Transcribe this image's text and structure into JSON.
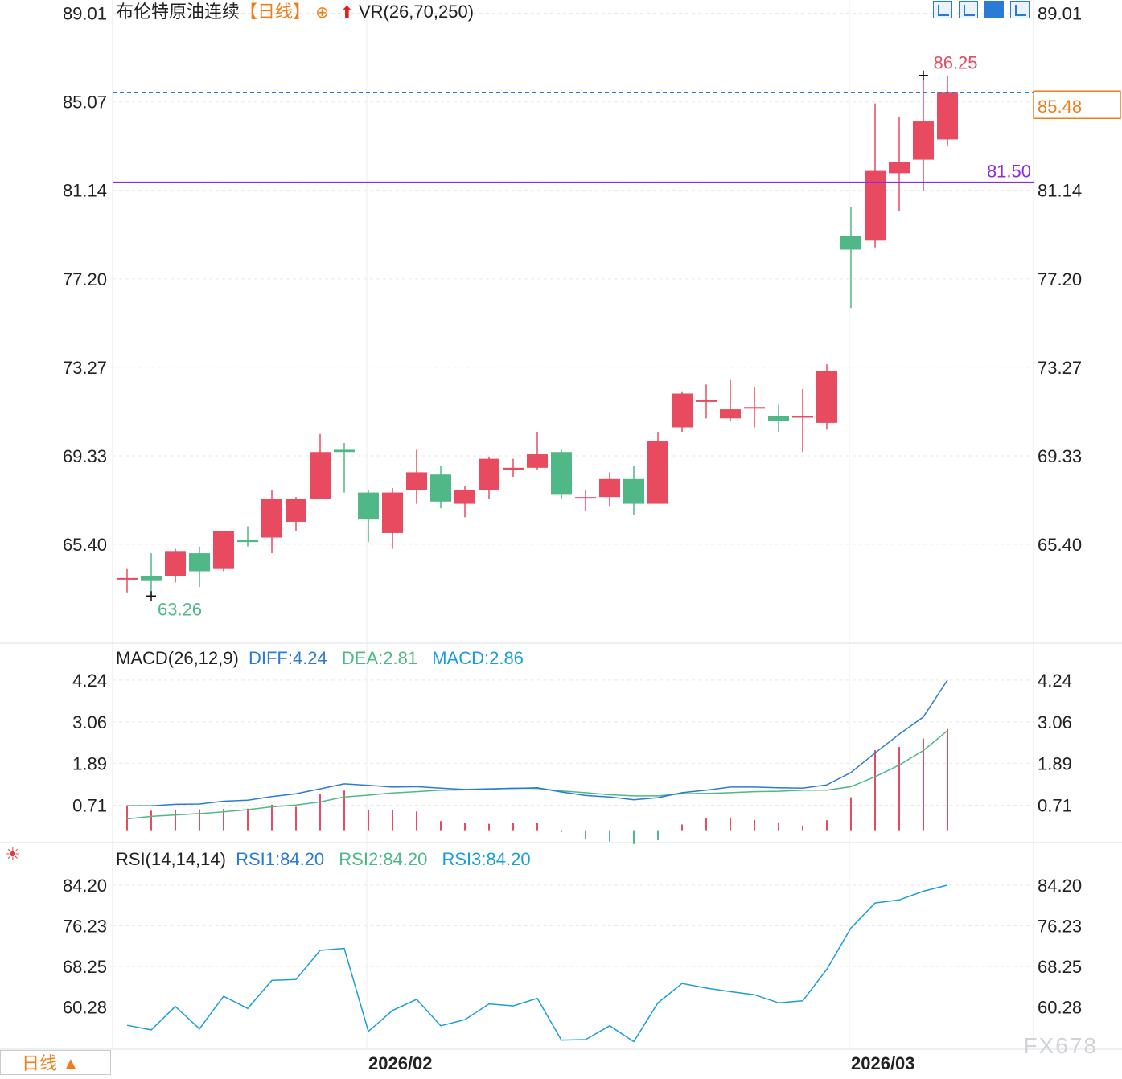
{
  "header": {
    "instrument": "布伦特原油连续",
    "period_tag": "【日线】",
    "add_glyph": "⊕",
    "indicator": "VR(26,70,250)"
  },
  "macd_header": {
    "label": "MACD(26,12,9)",
    "diff": "DIFF:4.24",
    "dea": "DEA:2.81",
    "macd": "MACD:2.86"
  },
  "rsi_header": {
    "label": "RSI(14,14,14)",
    "rsi1": "RSI1:84.20",
    "rsi2": "RSI2:84.20",
    "rsi3": "RSI3:84.20"
  },
  "footer": {
    "period_button": "日线 ▲",
    "watermark": "FX678"
  },
  "colors": {
    "up": "#e84a5f",
    "down": "#4fb886",
    "diff": "#2a7bd6",
    "dea": "#4fb886",
    "rsi": "#1a9ed8",
    "hline": "#8a2be2",
    "last": "#f07d1a"
  },
  "chart_data": [
    {
      "type": "candlestick",
      "title": "布伦特原油连续",
      "y_ticks": [
        "89.01",
        "85.07",
        "81.14",
        "77.20",
        "73.27",
        "69.33",
        "65.40"
      ],
      "ylim": [
        61.0,
        89.6
      ],
      "x_labels": [
        {
          "label": "2026/02",
          "index": 10
        },
        {
          "label": "2026/03",
          "index": 30
        }
      ],
      "candles": [
        {
          "o": 63.9,
          "h": 64.3,
          "l": 63.26,
          "c": 63.9
        },
        {
          "o": 64.0,
          "h": 65.0,
          "l": 63.1,
          "c": 63.8
        },
        {
          "o": 64.0,
          "h": 65.2,
          "l": 63.7,
          "c": 65.1
        },
        {
          "o": 65.0,
          "h": 65.3,
          "l": 63.5,
          "c": 64.2
        },
        {
          "o": 64.3,
          "h": 66.0,
          "l": 64.2,
          "c": 66.0
        },
        {
          "o": 65.6,
          "h": 66.2,
          "l": 65.3,
          "c": 65.5
        },
        {
          "o": 65.7,
          "h": 67.8,
          "l": 65.0,
          "c": 67.4
        },
        {
          "o": 66.4,
          "h": 67.5,
          "l": 66.0,
          "c": 67.4
        },
        {
          "o": 67.4,
          "h": 70.3,
          "l": 67.4,
          "c": 69.5
        },
        {
          "o": 69.6,
          "h": 69.9,
          "l": 67.7,
          "c": 69.5
        },
        {
          "o": 67.7,
          "h": 67.8,
          "l": 65.5,
          "c": 66.5
        },
        {
          "o": 65.9,
          "h": 67.9,
          "l": 65.2,
          "c": 67.7
        },
        {
          "o": 67.8,
          "h": 69.6,
          "l": 67.2,
          "c": 68.6
        },
        {
          "o": 68.5,
          "h": 68.9,
          "l": 67.0,
          "c": 67.3
        },
        {
          "o": 67.2,
          "h": 68.0,
          "l": 66.6,
          "c": 67.8
        },
        {
          "o": 67.8,
          "h": 69.3,
          "l": 67.4,
          "c": 69.2
        },
        {
          "o": 68.7,
          "h": 69.2,
          "l": 68.4,
          "c": 68.8
        },
        {
          "o": 68.8,
          "h": 70.4,
          "l": 68.7,
          "c": 69.4
        },
        {
          "o": 69.5,
          "h": 69.6,
          "l": 67.4,
          "c": 67.6
        },
        {
          "o": 67.5,
          "h": 67.8,
          "l": 66.9,
          "c": 67.5
        },
        {
          "o": 67.5,
          "h": 68.6,
          "l": 67.1,
          "c": 68.3
        },
        {
          "o": 68.3,
          "h": 68.9,
          "l": 66.7,
          "c": 67.2
        },
        {
          "o": 67.2,
          "h": 70.4,
          "l": 67.2,
          "c": 70.0
        },
        {
          "o": 70.6,
          "h": 72.2,
          "l": 70.4,
          "c": 72.1
        },
        {
          "o": 71.8,
          "h": 72.5,
          "l": 71.0,
          "c": 71.8
        },
        {
          "o": 71.0,
          "h": 72.7,
          "l": 70.9,
          "c": 71.4
        },
        {
          "o": 71.5,
          "h": 72.4,
          "l": 70.6,
          "c": 71.5
        },
        {
          "o": 71.1,
          "h": 71.6,
          "l": 70.4,
          "c": 70.9
        },
        {
          "o": 71.1,
          "h": 72.3,
          "l": 69.5,
          "c": 71.1
        },
        {
          "o": 70.8,
          "h": 73.4,
          "l": 70.5,
          "c": 73.1
        },
        {
          "o": 79.1,
          "h": 80.4,
          "l": 75.9,
          "c": 78.5
        },
        {
          "o": 78.9,
          "h": 85.0,
          "l": 78.6,
          "c": 82.0
        },
        {
          "o": 81.9,
          "h": 84.4,
          "l": 80.2,
          "c": 82.4
        },
        {
          "o": 82.5,
          "h": 86.1,
          "l": 81.1,
          "c": 84.2
        },
        {
          "o": 83.4,
          "h": 86.25,
          "l": 83.1,
          "c": 85.48
        }
      ],
      "high_label": "86.25",
      "low_label": "63.26",
      "last_price": "85.48",
      "reference_line": "81.50"
    },
    {
      "type": "macd",
      "y_ticks": [
        "4.24",
        "3.06",
        "1.89",
        "0.71"
      ],
      "ylim": [
        -0.35,
        4.6
      ],
      "diff": [
        0.69,
        0.69,
        0.73,
        0.74,
        0.82,
        0.85,
        0.95,
        1.03,
        1.17,
        1.31,
        1.27,
        1.22,
        1.23,
        1.19,
        1.15,
        1.17,
        1.18,
        1.2,
        1.08,
        0.98,
        0.94,
        0.86,
        0.92,
        1.06,
        1.13,
        1.22,
        1.22,
        1.2,
        1.19,
        1.28,
        1.63,
        2.18,
        2.71,
        3.2,
        4.24
      ],
      "dea": [
        0.32,
        0.39,
        0.43,
        0.47,
        0.52,
        0.58,
        0.66,
        0.71,
        0.8,
        0.94,
        0.99,
        1.05,
        1.09,
        1.13,
        1.14,
        1.16,
        1.19,
        1.18,
        1.11,
        1.06,
        1.0,
        0.97,
        0.97,
        1.03,
        1.04,
        1.06,
        1.09,
        1.1,
        1.13,
        1.13,
        1.23,
        1.51,
        1.84,
        2.25,
        2.81
      ],
      "macd": [
        0.69,
        0.55,
        0.58,
        0.59,
        0.6,
        0.61,
        0.72,
        0.66,
        1.02,
        1.12,
        0.56,
        0.58,
        0.53,
        0.26,
        0.21,
        0.18,
        0.2,
        0.2,
        -0.05,
        -0.26,
        -0.32,
        -0.39,
        -0.28,
        0.16,
        0.35,
        0.33,
        0.29,
        0.22,
        0.13,
        0.28,
        0.93,
        2.26,
        2.35,
        2.59,
        2.86
      ]
    },
    {
      "type": "line",
      "y_ticks": [
        "84.20",
        "76.23",
        "68.25",
        "60.28"
      ],
      "ylim": [
        52.0,
        87.5
      ],
      "rsi": [
        56.7,
        55.8,
        60.4,
        56.0,
        62.4,
        60.0,
        65.5,
        65.7,
        71.4,
        71.8,
        55.5,
        59.6,
        61.8,
        56.6,
        57.8,
        60.9,
        60.5,
        62.0,
        53.8,
        53.9,
        56.6,
        53.5,
        61.1,
        64.9,
        64.0,
        63.3,
        62.7,
        61.1,
        61.5,
        67.7,
        75.8,
        80.7,
        81.3,
        83.0,
        84.2
      ]
    }
  ]
}
